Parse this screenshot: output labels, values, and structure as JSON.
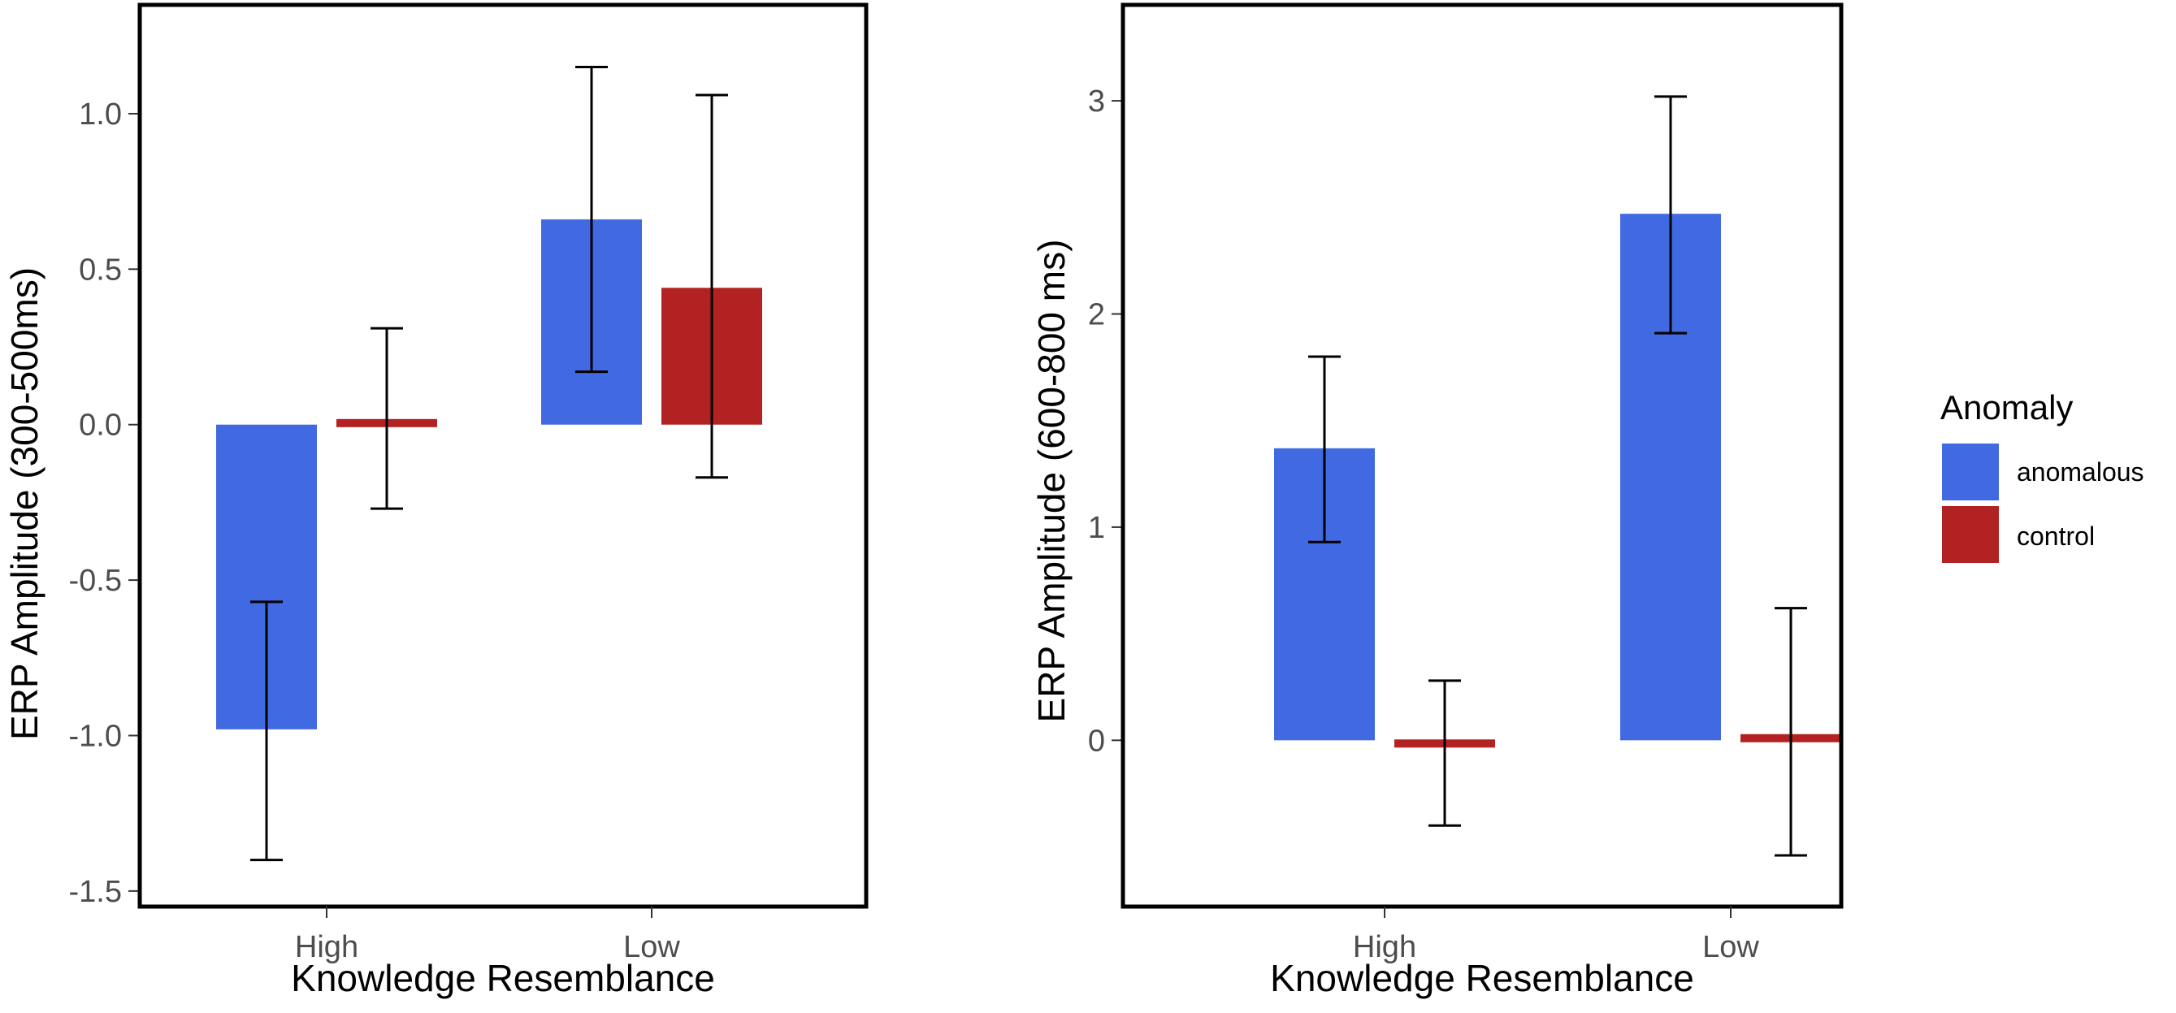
{
  "chart_data": [
    {
      "type": "bar",
      "xlabel": "Knowledge Resemblance",
      "ylabel": "ERP Amplitude (300-500ms)",
      "categories": [
        "High",
        "Low"
      ],
      "ylim": [
        -1.55,
        1.35
      ],
      "yticks": [
        1.0,
        0.5,
        0.0,
        -0.5,
        -1.0,
        -1.5
      ],
      "ytick_labels": [
        "1.0",
        "0.5",
        "0.0",
        "-0.5",
        "-1.0",
        "-1.5"
      ],
      "series": [
        {
          "name": "anomalous",
          "values": [
            -0.98,
            0.66
          ],
          "error_low": [
            -1.4,
            0.17
          ],
          "error_high": [
            -0.57,
            1.15
          ]
        },
        {
          "name": "control",
          "values": [
            0.01,
            0.44
          ],
          "error_low": [
            -0.27,
            -0.17
          ],
          "error_high": [
            0.31,
            1.06
          ]
        }
      ]
    },
    {
      "type": "bar",
      "xlabel": "Knowledge Resemblance",
      "ylabel": "ERP Amplitude (600-800 ms)",
      "categories": [
        "High",
        "Low"
      ],
      "ylim": [
        -0.78,
        3.45
      ],
      "yticks": [
        3,
        2,
        1,
        0
      ],
      "ytick_labels": [
        "3",
        "2",
        "1",
        "0"
      ],
      "series": [
        {
          "name": "anomalous",
          "values": [
            1.37,
            2.47
          ],
          "error_low": [
            0.93,
            1.91
          ],
          "error_high": [
            1.8,
            3.02
          ]
        },
        {
          "name": "control",
          "values": [
            -0.03,
            0.02
          ],
          "error_low": [
            -0.4,
            -0.54
          ],
          "error_high": [
            0.28,
            0.62
          ]
        }
      ]
    }
  ],
  "legend": {
    "title": "Anomaly",
    "items": [
      {
        "label": "anomalous",
        "color": "#4169E1"
      },
      {
        "label": "control",
        "color": "#B22222"
      }
    ]
  },
  "colors": {
    "anomalous": "#4169E1",
    "control": "#B22222",
    "error_bar": "#000000",
    "panel_border": "#000000"
  }
}
